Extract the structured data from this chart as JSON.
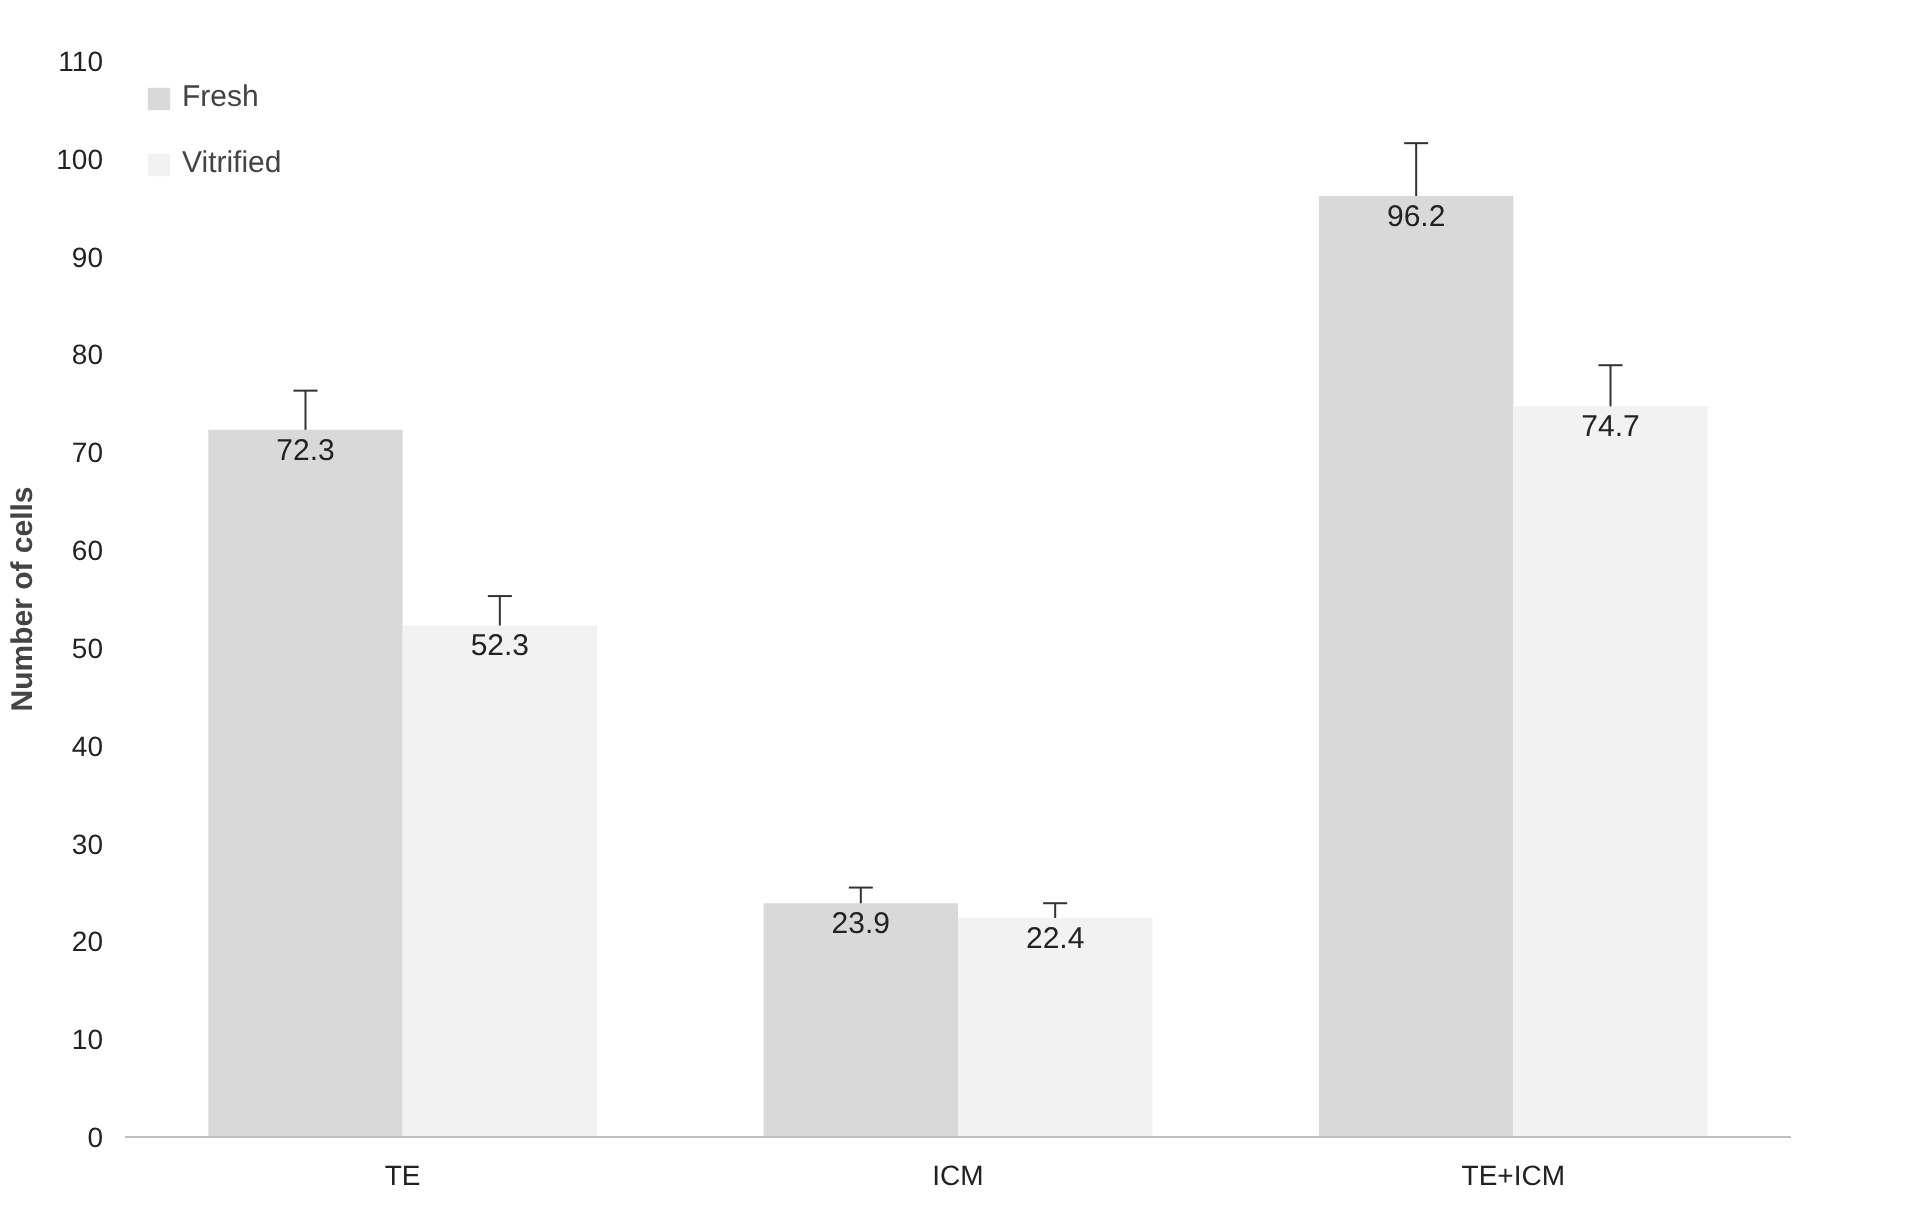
{
  "chart_data": {
    "type": "bar",
    "ylabel": "Number of cells",
    "categories": [
      "TE",
      "ICM",
      "TE+ICM"
    ],
    "series": [
      {
        "name": "Fresh",
        "color": "#d9d9d9",
        "values": [
          72.3,
          23.9,
          96.2
        ],
        "errors": [
          4.0,
          1.6,
          5.4
        ]
      },
      {
        "name": "Vitrified",
        "color": "#f2f2f2",
        "values": [
          52.3,
          22.4,
          74.7
        ],
        "errors": [
          3.0,
          1.5,
          4.2
        ]
      }
    ],
    "ylim": [
      0,
      110
    ],
    "yticks": [
      0,
      10,
      20,
      30,
      40,
      50,
      60,
      70,
      80,
      90,
      100,
      110
    ],
    "data_labels": true,
    "legend": "top left",
    "grid": false
  }
}
